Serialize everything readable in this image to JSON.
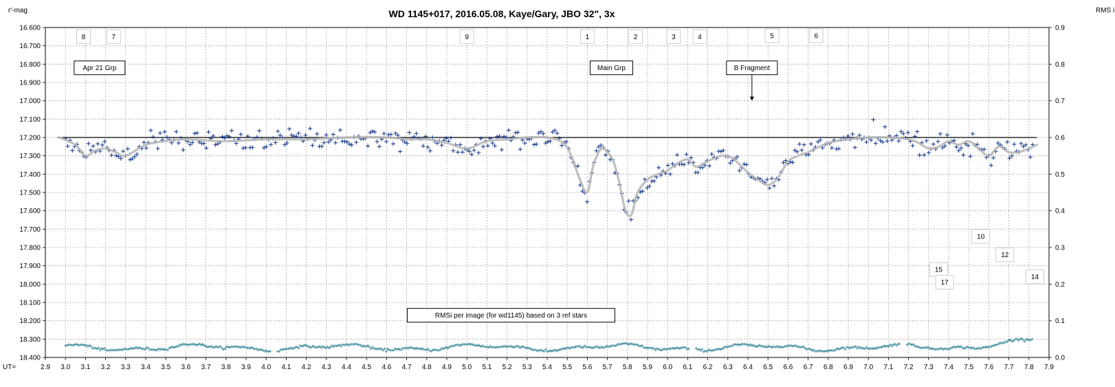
{
  "chart_data": {
    "type": "scatter",
    "title": "WD 1145+017,  2016.05.08,  Kaye/Gary,  JBO 32\", 3x",
    "ylabel_left": "r'-mag",
    "ylabel_right": "RMS i",
    "xlabel": "UT=",
    "xlim": [
      2.9,
      7.9
    ],
    "ylim_left": [
      16.6,
      18.4
    ],
    "ylim_right": [
      0.0,
      0.9
    ],
    "y_inverted": true,
    "grid": true,
    "x_ticks": [
      "2.9",
      "3.0",
      "3.1",
      "3.2",
      "3.3",
      "3.4",
      "3.5",
      "3.6",
      "3.7",
      "3.8",
      "3.9",
      "4.0",
      "4.1",
      "4.2",
      "4.3",
      "4.4",
      "4.5",
      "4.6",
      "4.7",
      "4.8",
      "4.9",
      "5.0",
      "5.1",
      "5.2",
      "5.3",
      "5.4",
      "5.5",
      "5.6",
      "5.7",
      "5.8",
      "5.9",
      "6.0",
      "6.1",
      "6.2",
      "6.3",
      "6.4",
      "6.5",
      "6.6",
      "6.7",
      "6.8",
      "6.9",
      "7.0",
      "7.1",
      "7.2",
      "7.3",
      "7.4",
      "7.5",
      "7.6",
      "7.7",
      "7.8",
      "7.9"
    ],
    "y_ticks_left": [
      "16.600",
      "16.700",
      "16.800",
      "16.900",
      "17.000",
      "17.100",
      "17.200",
      "17.300",
      "17.400",
      "17.500",
      "17.600",
      "17.700",
      "17.800",
      "17.900",
      "18.000",
      "18.100",
      "18.200",
      "18.300",
      "18.400"
    ],
    "y_ticks_right": [
      "0.9",
      "0.8",
      "0.7",
      "0.6",
      "0.5",
      "0.4",
      "0.3",
      "0.2",
      "0.1",
      "0.0"
    ],
    "baseline_mag": 17.2,
    "colors": {
      "mag": "#1f3f8f",
      "fit": "#b8b8b8",
      "rms": "#3a8a9a",
      "baseline": "#000000"
    },
    "series": [
      {
        "series_type": "magnitudes",
        "marker": "plus"
      },
      {
        "series_type": "fit",
        "x": [
          2.97,
          3.05,
          3.1,
          3.15,
          3.2,
          3.25,
          3.3,
          3.4,
          3.5,
          3.6,
          3.8,
          4.0,
          4.2,
          4.4,
          4.6,
          4.7,
          4.8,
          4.9,
          5.0,
          5.1,
          5.2,
          5.3,
          5.4,
          5.48,
          5.52,
          5.56,
          5.6,
          5.63,
          5.67,
          5.7,
          5.73,
          5.76,
          5.79,
          5.82,
          5.85,
          5.9,
          5.95,
          6.0,
          6.05,
          6.1,
          6.14,
          6.18,
          6.22,
          6.27,
          6.32,
          6.37,
          6.41,
          6.45,
          6.5,
          6.55,
          6.6,
          6.65,
          6.7,
          6.8,
          6.9,
          7.0,
          7.1,
          7.2,
          7.25,
          7.3,
          7.35,
          7.4,
          7.45,
          7.5,
          7.55,
          7.6,
          7.65,
          7.7,
          7.75,
          7.8,
          7.84
        ],
        "y": [
          17.2,
          17.24,
          17.3,
          17.27,
          17.26,
          17.28,
          17.3,
          17.24,
          17.22,
          17.21,
          17.22,
          17.21,
          17.21,
          17.2,
          17.2,
          17.21,
          17.21,
          17.23,
          17.26,
          17.22,
          17.21,
          17.2,
          17.2,
          17.23,
          17.3,
          17.42,
          17.5,
          17.35,
          17.26,
          17.28,
          17.33,
          17.45,
          17.6,
          17.62,
          17.5,
          17.43,
          17.4,
          17.38,
          17.34,
          17.32,
          17.36,
          17.34,
          17.32,
          17.3,
          17.31,
          17.36,
          17.4,
          17.43,
          17.46,
          17.42,
          17.33,
          17.3,
          17.28,
          17.23,
          17.21,
          17.2,
          17.2,
          17.21,
          17.23,
          17.26,
          17.25,
          17.22,
          17.24,
          17.22,
          17.26,
          17.3,
          17.25,
          17.28,
          17.28,
          17.26,
          17.24
        ]
      },
      {
        "series_type": "rms_i",
        "marker": "plus"
      }
    ],
    "labels": [
      {
        "text": "8",
        "x": 3.09,
        "mag": 16.65
      },
      {
        "text": "7",
        "x": 3.24,
        "mag": 16.65
      },
      {
        "text": "9",
        "x": 5.0,
        "mag": 16.65
      },
      {
        "text": "1",
        "x": 5.6,
        "mag": 16.65
      },
      {
        "text": "2",
        "x": 5.84,
        "mag": 16.65
      },
      {
        "text": "3",
        "x": 6.03,
        "mag": 16.65
      },
      {
        "text": "4",
        "x": 6.16,
        "mag": 16.65
      },
      {
        "text": "5",
        "x": 6.52,
        "mag": 16.645
      },
      {
        "text": "6",
        "x": 6.74,
        "mag": 16.645
      },
      {
        "text": "Apr 21 Grp",
        "x": 3.17,
        "mag": 16.82
      },
      {
        "text": "Main Grp",
        "x": 5.72,
        "mag": 16.82
      },
      {
        "text": "B Fragment",
        "x": 6.42,
        "mag": 16.82,
        "arrow_to_mag": 17.0
      },
      {
        "text": "10",
        "x": 7.56,
        "mag": 17.74
      },
      {
        "text": "12",
        "x": 7.68,
        "mag": 17.84
      },
      {
        "text": "15",
        "x": 7.35,
        "mag": 17.92
      },
      {
        "text": "14",
        "x": 7.83,
        "mag": 17.96
      },
      {
        "text": "17",
        "x": 7.38,
        "mag": 17.99
      },
      {
        "text": "RMSi per image (for wd1145) based on 3 ref stars",
        "x": 5.22,
        "mag": 18.17
      }
    ]
  }
}
